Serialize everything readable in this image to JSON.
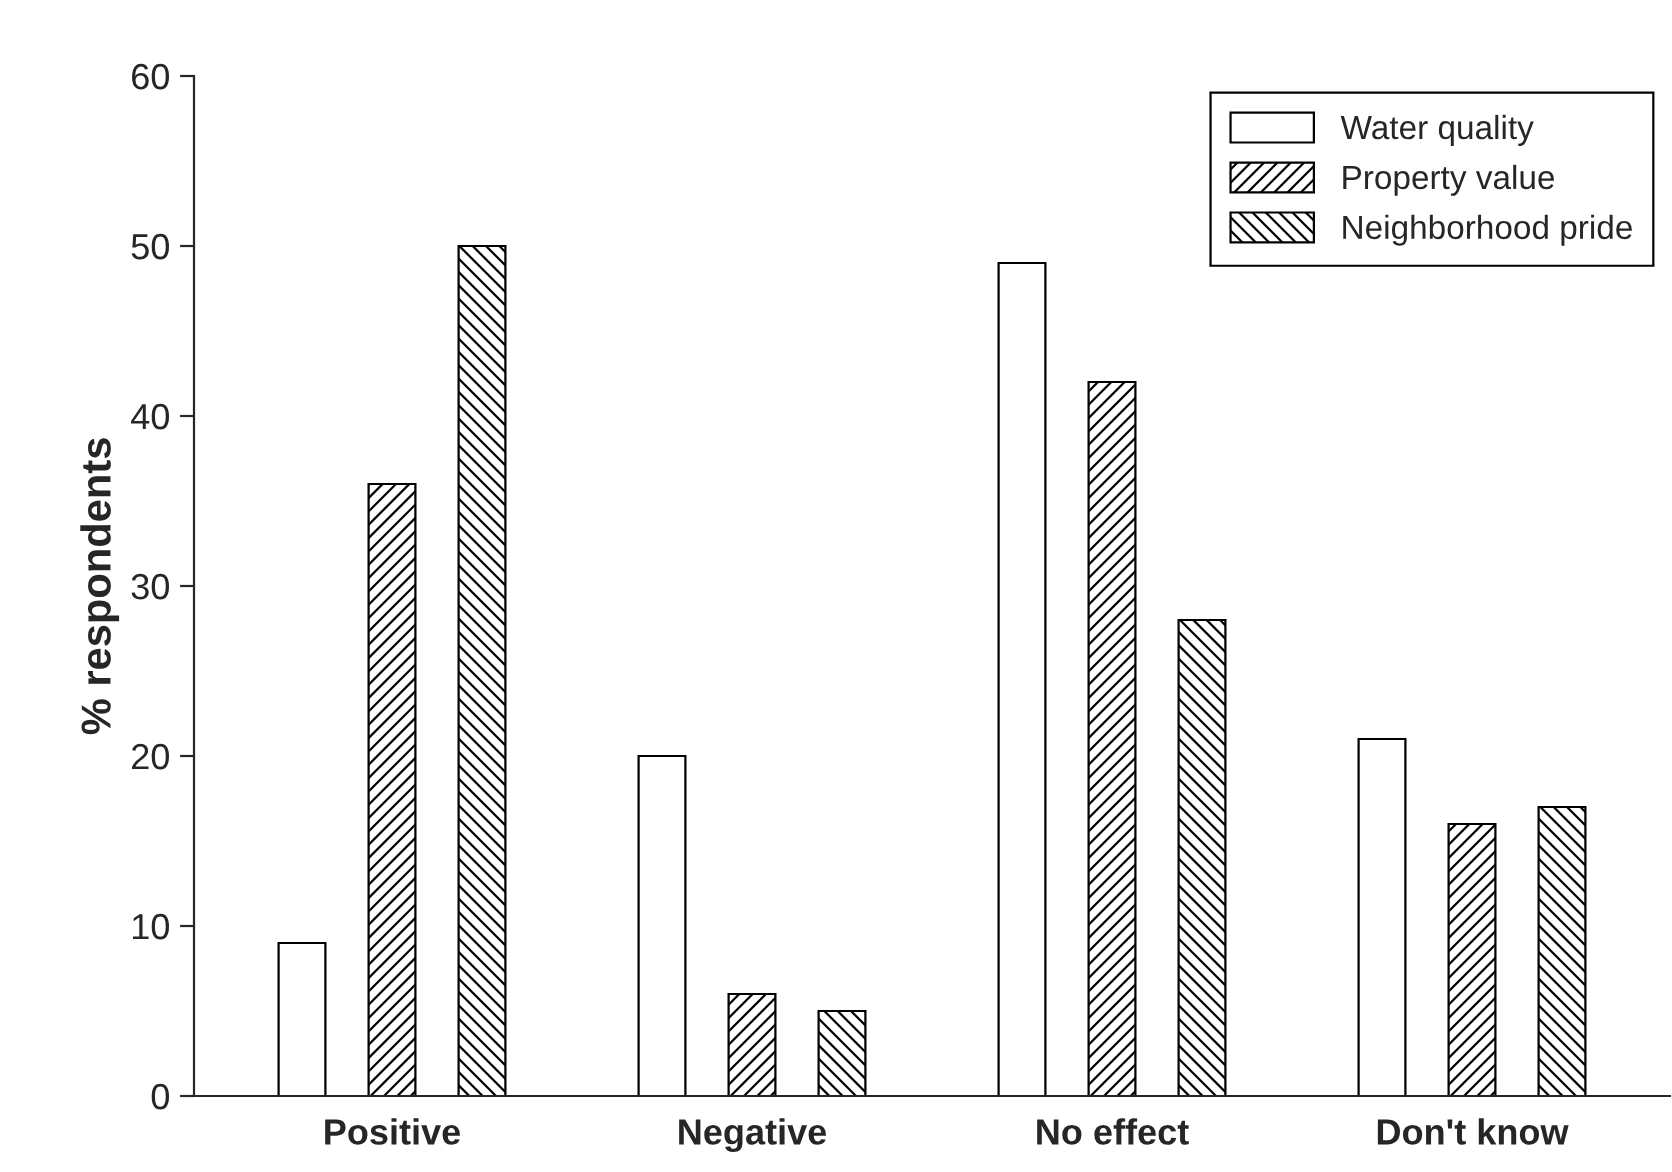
{
  "chart_data": {
    "type": "bar",
    "ylabel": "% respondents",
    "categories": [
      "Positive",
      "Negative",
      "No effect",
      "Don't know"
    ],
    "series": [
      {
        "name": "Water quality",
        "color": "#ffffff",
        "values": [
          9,
          20,
          49,
          21
        ]
      },
      {
        "name": "Property value",
        "color": "#000000",
        "values": [
          36,
          6,
          42,
          16
        ]
      },
      {
        "name": "Neighborhood pride",
        "color": "#000000",
        "values": [
          50,
          5,
          28,
          17
        ]
      }
    ],
    "ylim": [
      0,
      60
    ],
    "yticks": [
      0,
      10,
      20,
      30,
      40,
      50,
      60
    ],
    "grid": false,
    "legend": "top right"
  }
}
